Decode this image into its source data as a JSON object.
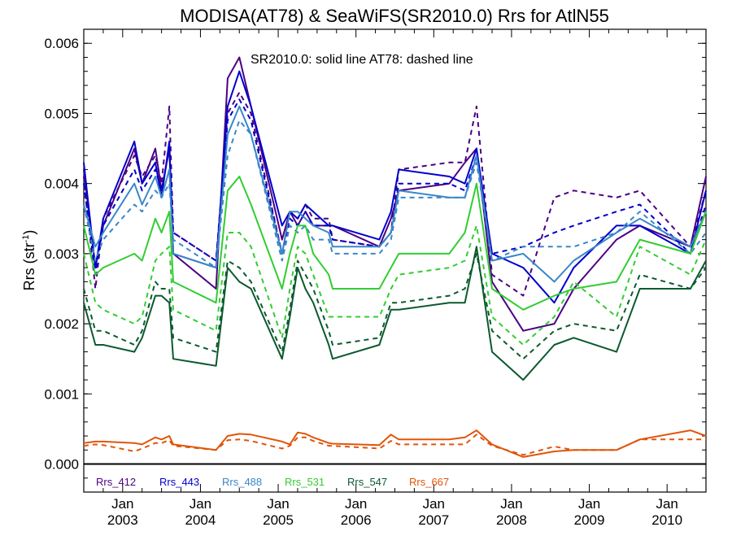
{
  "chart_data": {
    "type": "line",
    "title": "MODISA(AT78) & SeaWiFS(SR2010.0)  Rrs for AtlN55",
    "ylabel": "Rrs (str",
    "ylabel_sup": "-1",
    "ylabel_close": ")",
    "annotation": "SR2010.0: solid line   AT78: dashed line",
    "xlim": [
      2002.5,
      2010.5
    ],
    "ylim": [
      -0.0004,
      0.0062
    ],
    "yticks": [
      {
        "value": 0.0,
        "label": "0.000"
      },
      {
        "value": 0.001,
        "label": "0.001"
      },
      {
        "value": 0.002,
        "label": "0.002"
      },
      {
        "value": 0.003,
        "label": "0.003"
      },
      {
        "value": 0.004,
        "label": "0.004"
      },
      {
        "value": 0.005,
        "label": "0.005"
      },
      {
        "value": 0.006,
        "label": "0.006"
      }
    ],
    "xticks": [
      {
        "value": 2003.0,
        "month": "Jan",
        "year": "2003"
      },
      {
        "value": 2004.0,
        "month": "Jan",
        "year": "2004"
      },
      {
        "value": 2005.0,
        "month": "Jan",
        "year": "2005"
      },
      {
        "value": 2006.0,
        "month": "Jan",
        "year": "2006"
      },
      {
        "value": 2007.0,
        "month": "Jan",
        "year": "2007"
      },
      {
        "value": 2008.0,
        "month": "Jan",
        "year": "2008"
      },
      {
        "value": 2009.0,
        "month": "Jan",
        "year": "2009"
      },
      {
        "value": 2010.0,
        "month": "Jan",
        "year": "2010"
      }
    ],
    "zero_line": true,
    "legend_position": "bottom-left",
    "series": [
      {
        "name": "Rrs_412",
        "color": "#4b0082",
        "style": "solid",
        "x": [
          2002.5,
          2002.65,
          2002.75,
          2003.15,
          2003.25,
          2003.42,
          2003.5,
          2003.6,
          2003.65,
          2004.2,
          2004.35,
          2004.5,
          2004.65,
          2005.05,
          2005.15,
          2005.25,
          2005.35,
          2005.45,
          2005.65,
          2005.7,
          2006.3,
          2006.45,
          2006.55,
          2007.2,
          2007.4,
          2007.55,
          2007.75,
          2008.15,
          2008.55,
          2008.8,
          2009.35,
          2009.65,
          2010.3,
          2010.5
        ],
        "y": [
          0.0042,
          0.0028,
          0.0034,
          0.0045,
          0.004,
          0.0045,
          0.0039,
          0.0045,
          0.003,
          0.0025,
          0.0055,
          0.0058,
          0.0051,
          0.0032,
          0.0036,
          0.0034,
          0.0036,
          0.0034,
          0.0034,
          0.0034,
          0.0031,
          0.0035,
          0.0039,
          0.004,
          0.0043,
          0.0045,
          0.0026,
          0.0019,
          0.002,
          0.0025,
          0.0032,
          0.0034,
          0.0031,
          0.0041
        ]
      },
      {
        "name": "Rrs_412",
        "color": "#4b0082",
        "style": "dashed",
        "x": [
          2002.5,
          2002.65,
          2002.75,
          2003.15,
          2003.25,
          2003.42,
          2003.5,
          2003.6,
          2003.65,
          2004.2,
          2004.35,
          2004.5,
          2004.65,
          2005.05,
          2005.15,
          2005.25,
          2005.35,
          2005.45,
          2005.65,
          2005.7,
          2006.3,
          2006.45,
          2006.55,
          2007.2,
          2007.4,
          2007.55,
          2007.75,
          2008.15,
          2008.55,
          2008.8,
          2009.35,
          2009.65,
          2010.3,
          2010.5
        ],
        "y": [
          0.0041,
          0.0025,
          0.0035,
          0.0044,
          0.0041,
          0.0044,
          0.004,
          0.0051,
          0.0033,
          0.0029,
          0.005,
          0.0053,
          0.005,
          0.003,
          0.0036,
          0.0035,
          0.0037,
          0.0035,
          0.0035,
          0.0032,
          0.0031,
          0.0033,
          0.0042,
          0.0043,
          0.0043,
          0.0051,
          0.0027,
          0.0024,
          0.0038,
          0.0039,
          0.0038,
          0.0039,
          0.0031,
          0.0039
        ]
      },
      {
        "name": "Rrs_443",
        "color": "#0000cd",
        "style": "solid",
        "x": [
          2002.5,
          2002.65,
          2002.75,
          2003.15,
          2003.25,
          2003.42,
          2003.5,
          2003.6,
          2003.65,
          2004.2,
          2004.35,
          2004.5,
          2004.65,
          2005.05,
          2005.15,
          2005.25,
          2005.35,
          2005.45,
          2005.65,
          2005.7,
          2006.3,
          2006.45,
          2006.55,
          2007.2,
          2007.4,
          2007.55,
          2007.75,
          2008.15,
          2008.55,
          2008.8,
          2009.35,
          2009.65,
          2010.3,
          2010.5
        ],
        "y": [
          0.0043,
          0.0028,
          0.0035,
          0.0046,
          0.004,
          0.0043,
          0.0038,
          0.0046,
          0.003,
          0.0028,
          0.0051,
          0.0056,
          0.0051,
          0.0034,
          0.0036,
          0.0035,
          0.0037,
          0.0036,
          0.0034,
          0.0034,
          0.0032,
          0.0036,
          0.0042,
          0.0041,
          0.004,
          0.0045,
          0.003,
          0.0028,
          0.0023,
          0.0028,
          0.0034,
          0.0034,
          0.003,
          0.0039
        ]
      },
      {
        "name": "Rrs_443",
        "color": "#0000cd",
        "style": "dashed",
        "x": [
          2002.5,
          2002.65,
          2002.75,
          2003.15,
          2003.25,
          2003.42,
          2003.5,
          2003.6,
          2003.65,
          2004.2,
          2004.35,
          2004.5,
          2004.65,
          2005.05,
          2005.15,
          2005.25,
          2005.35,
          2005.45,
          2005.65,
          2005.7,
          2006.3,
          2006.45,
          2006.55,
          2007.2,
          2007.4,
          2007.55,
          2007.75,
          2008.15,
          2008.55,
          2008.8,
          2009.35,
          2009.65,
          2010.3,
          2010.5
        ],
        "y": [
          0.004,
          0.0027,
          0.0034,
          0.0042,
          0.0039,
          0.0042,
          0.0039,
          0.0045,
          0.0033,
          0.0029,
          0.0049,
          0.0052,
          0.0049,
          0.003,
          0.0035,
          0.0034,
          0.0036,
          0.0034,
          0.0034,
          0.0032,
          0.0031,
          0.0033,
          0.004,
          0.004,
          0.0039,
          0.0044,
          0.003,
          0.0031,
          0.0033,
          0.0034,
          0.0036,
          0.0037,
          0.003,
          0.0037
        ]
      },
      {
        "name": "Rrs_488",
        "color": "#3a87c8",
        "style": "solid",
        "x": [
          2002.5,
          2002.65,
          2002.75,
          2003.15,
          2003.25,
          2003.42,
          2003.5,
          2003.6,
          2003.65,
          2004.2,
          2004.35,
          2004.5,
          2004.65,
          2005.05,
          2005.15,
          2005.25,
          2005.35,
          2005.45,
          2005.65,
          2005.7,
          2006.3,
          2006.45,
          2006.55,
          2007.2,
          2007.4,
          2007.55,
          2007.75,
          2008.15,
          2008.55,
          2008.8,
          2009.35,
          2009.65,
          2010.3,
          2010.5
        ],
        "y": [
          0.0037,
          0.0031,
          0.0033,
          0.004,
          0.0037,
          0.0041,
          0.0038,
          0.0042,
          0.003,
          0.0028,
          0.0047,
          0.0051,
          0.0047,
          0.003,
          0.0036,
          0.0036,
          0.0035,
          0.0034,
          0.0033,
          0.0031,
          0.0031,
          0.0033,
          0.0039,
          0.0038,
          0.0038,
          0.0044,
          0.0029,
          0.003,
          0.0026,
          0.0029,
          0.0033,
          0.0035,
          0.0031,
          0.0036
        ]
      },
      {
        "name": "Rrs_488",
        "color": "#3a87c8",
        "style": "dashed",
        "x": [
          2002.5,
          2002.65,
          2002.75,
          2003.15,
          2003.25,
          2003.42,
          2003.5,
          2003.6,
          2003.65,
          2004.2,
          2004.35,
          2004.5,
          2004.65,
          2005.05,
          2005.15,
          2005.25,
          2005.35,
          2005.45,
          2005.65,
          2005.7,
          2006.3,
          2006.45,
          2006.55,
          2007.2,
          2007.4,
          2007.55,
          2007.75,
          2008.15,
          2008.55,
          2008.8,
          2009.35,
          2009.65,
          2010.3,
          2010.5
        ],
        "y": [
          0.0037,
          0.0029,
          0.0032,
          0.0037,
          0.0036,
          0.0039,
          0.0038,
          0.004,
          0.0032,
          0.0028,
          0.0044,
          0.0049,
          0.0047,
          0.0029,
          0.0034,
          0.0033,
          0.0034,
          0.0032,
          0.0032,
          0.003,
          0.003,
          0.0032,
          0.0038,
          0.0038,
          0.0038,
          0.0043,
          0.0029,
          0.0031,
          0.0031,
          0.0031,
          0.0033,
          0.0036,
          0.003,
          0.0033
        ]
      },
      {
        "name": "Rrs_531",
        "color": "#32cd32",
        "style": "solid",
        "x": [
          2002.5,
          2002.65,
          2002.75,
          2003.15,
          2003.25,
          2003.42,
          2003.5,
          2003.6,
          2003.65,
          2004.2,
          2004.35,
          2004.5,
          2004.65,
          2005.05,
          2005.15,
          2005.25,
          2005.35,
          2005.45,
          2005.65,
          2005.7,
          2006.3,
          2006.45,
          2006.55,
          2007.2,
          2007.4,
          2007.55,
          2007.75,
          2008.15,
          2008.55,
          2008.8,
          2009.35,
          2009.65,
          2010.3,
          2010.5
        ],
        "y": [
          0.0034,
          0.0027,
          0.0028,
          0.003,
          0.0029,
          0.0035,
          0.0033,
          0.0036,
          0.0026,
          0.0023,
          0.0039,
          0.0041,
          0.0037,
          0.0025,
          0.003,
          0.0034,
          0.0034,
          0.003,
          0.0027,
          0.0025,
          0.0025,
          0.0028,
          0.003,
          0.003,
          0.0033,
          0.004,
          0.0025,
          0.0022,
          0.0024,
          0.0025,
          0.0026,
          0.0032,
          0.003,
          0.0036
        ]
      },
      {
        "name": "Rrs_531",
        "color": "#32cd32",
        "style": "dashed",
        "x": [
          2002.5,
          2002.65,
          2002.75,
          2003.15,
          2003.25,
          2003.42,
          2003.5,
          2003.6,
          2003.65,
          2004.2,
          2004.35,
          2004.5,
          2004.65,
          2005.05,
          2005.15,
          2005.25,
          2005.35,
          2005.45,
          2005.65,
          2005.7,
          2006.3,
          2006.45,
          2006.55,
          2007.2,
          2007.4,
          2007.55,
          2007.75,
          2008.15,
          2008.55,
          2008.8,
          2009.35,
          2009.65,
          2010.3,
          2010.5
        ],
        "y": [
          0.003,
          0.0023,
          0.0022,
          0.002,
          0.0021,
          0.0029,
          0.003,
          0.0031,
          0.0022,
          0.0019,
          0.0033,
          0.0033,
          0.0031,
          0.0018,
          0.0025,
          0.0031,
          0.003,
          0.0027,
          0.0021,
          0.0021,
          0.0021,
          0.0025,
          0.0027,
          0.0028,
          0.0029,
          0.0034,
          0.0021,
          0.0017,
          0.0021,
          0.0026,
          0.0021,
          0.0031,
          0.0027,
          0.0032
        ]
      },
      {
        "name": "Rrs_547",
        "color": "#0b5a2e",
        "style": "solid",
        "x": [
          2002.5,
          2002.65,
          2002.75,
          2003.15,
          2003.25,
          2003.42,
          2003.5,
          2003.6,
          2003.65,
          2004.2,
          2004.35,
          2004.5,
          2004.65,
          2005.05,
          2005.15,
          2005.25,
          2005.35,
          2005.45,
          2005.65,
          2005.7,
          2006.3,
          2006.45,
          2006.55,
          2007.2,
          2007.4,
          2007.55,
          2007.75,
          2008.15,
          2008.55,
          2008.8,
          2009.35,
          2009.65,
          2010.3,
          2010.5
        ],
        "y": [
          0.0023,
          0.0017,
          0.0017,
          0.0016,
          0.0018,
          0.0024,
          0.0024,
          0.0023,
          0.0015,
          0.0014,
          0.0028,
          0.0026,
          0.0025,
          0.0015,
          0.0021,
          0.0028,
          0.0025,
          0.0023,
          0.0017,
          0.0015,
          0.0017,
          0.0022,
          0.0022,
          0.0023,
          0.0023,
          0.0031,
          0.0016,
          0.0012,
          0.0017,
          0.0018,
          0.0016,
          0.0025,
          0.0025,
          0.0029
        ]
      },
      {
        "name": "Rrs_547",
        "color": "#0b5a2e",
        "style": "dashed",
        "x": [
          2002.5,
          2002.65,
          2002.75,
          2003.15,
          2003.25,
          2003.42,
          2003.5,
          2003.6,
          2003.65,
          2004.2,
          2004.35,
          2004.5,
          2004.65,
          2005.05,
          2005.15,
          2005.25,
          2005.35,
          2005.45,
          2005.65,
          2005.7,
          2006.3,
          2006.45,
          2006.55,
          2007.2,
          2007.4,
          2007.55,
          2007.75,
          2008.15,
          2008.55,
          2008.8,
          2009.35,
          2009.65,
          2010.3,
          2010.5
        ],
        "y": [
          0.0025,
          0.0019,
          0.0019,
          0.0017,
          0.0019,
          0.0026,
          0.0025,
          0.0025,
          0.0018,
          0.0016,
          0.0029,
          0.0028,
          0.0026,
          0.0016,
          0.0022,
          0.0029,
          0.0027,
          0.0025,
          0.0019,
          0.0017,
          0.0018,
          0.0023,
          0.0023,
          0.0024,
          0.0025,
          0.003,
          0.0019,
          0.0015,
          0.0019,
          0.002,
          0.0019,
          0.0027,
          0.0025,
          0.0028
        ]
      },
      {
        "name": "Rrs_667",
        "color": "#e0550b",
        "style": "solid",
        "x": [
          2002.5,
          2002.65,
          2002.75,
          2003.15,
          2003.25,
          2003.42,
          2003.5,
          2003.6,
          2003.65,
          2004.2,
          2004.35,
          2004.5,
          2004.65,
          2005.05,
          2005.15,
          2005.25,
          2005.35,
          2005.45,
          2005.65,
          2005.7,
          2006.3,
          2006.45,
          2006.55,
          2007.2,
          2007.4,
          2007.55,
          2007.75,
          2008.15,
          2008.55,
          2008.8,
          2009.35,
          2009.65,
          2010.3,
          2010.5
        ],
        "y": [
          0.0003,
          0.00032,
          0.00032,
          0.0003,
          0.00028,
          0.00038,
          0.00035,
          0.0004,
          0.00028,
          0.0002,
          0.0004,
          0.00043,
          0.00042,
          0.00032,
          0.00028,
          0.00045,
          0.00043,
          0.00038,
          0.0003,
          0.00029,
          0.00027,
          0.00042,
          0.00035,
          0.00035,
          0.00038,
          0.00048,
          0.00028,
          0.0001,
          0.00018,
          0.0002,
          0.0002,
          0.00035,
          0.00048,
          0.0004
        ]
      },
      {
        "name": "Rrs_667",
        "color": "#e0550b",
        "style": "dashed",
        "x": [
          2002.5,
          2002.65,
          2002.75,
          2003.15,
          2003.25,
          2003.42,
          2003.5,
          2003.6,
          2003.65,
          2004.2,
          2004.35,
          2004.5,
          2004.65,
          2005.05,
          2005.15,
          2005.25,
          2005.35,
          2005.45,
          2005.65,
          2005.7,
          2006.3,
          2006.45,
          2006.55,
          2007.2,
          2007.4,
          2007.55,
          2007.75,
          2008.15,
          2008.55,
          2008.8,
          2009.35,
          2009.65,
          2010.3,
          2010.5
        ],
        "y": [
          0.00026,
          0.00028,
          0.00027,
          0.00018,
          0.00022,
          0.0003,
          0.0003,
          0.00034,
          0.00026,
          0.0002,
          0.00034,
          0.00035,
          0.00033,
          0.00022,
          0.00026,
          0.00038,
          0.00038,
          0.00033,
          0.00026,
          0.00026,
          0.00022,
          0.00033,
          0.00028,
          0.00028,
          0.00028,
          0.00042,
          0.00026,
          0.00013,
          0.00025,
          0.0002,
          0.0002,
          0.00035,
          0.00035,
          0.00035
        ]
      }
    ],
    "legend": [
      {
        "label": "Rrs_412",
        "color": "#4b0082"
      },
      {
        "label": "Rrs_443",
        "color": "#0000cd"
      },
      {
        "label": "Rrs_488",
        "color": "#3a87c8"
      },
      {
        "label": "Rrs_531",
        "color": "#32cd32"
      },
      {
        "label": "Rrs_547",
        "color": "#0b5a2e"
      },
      {
        "label": "Rrs_667",
        "color": "#e0550b"
      }
    ]
  }
}
